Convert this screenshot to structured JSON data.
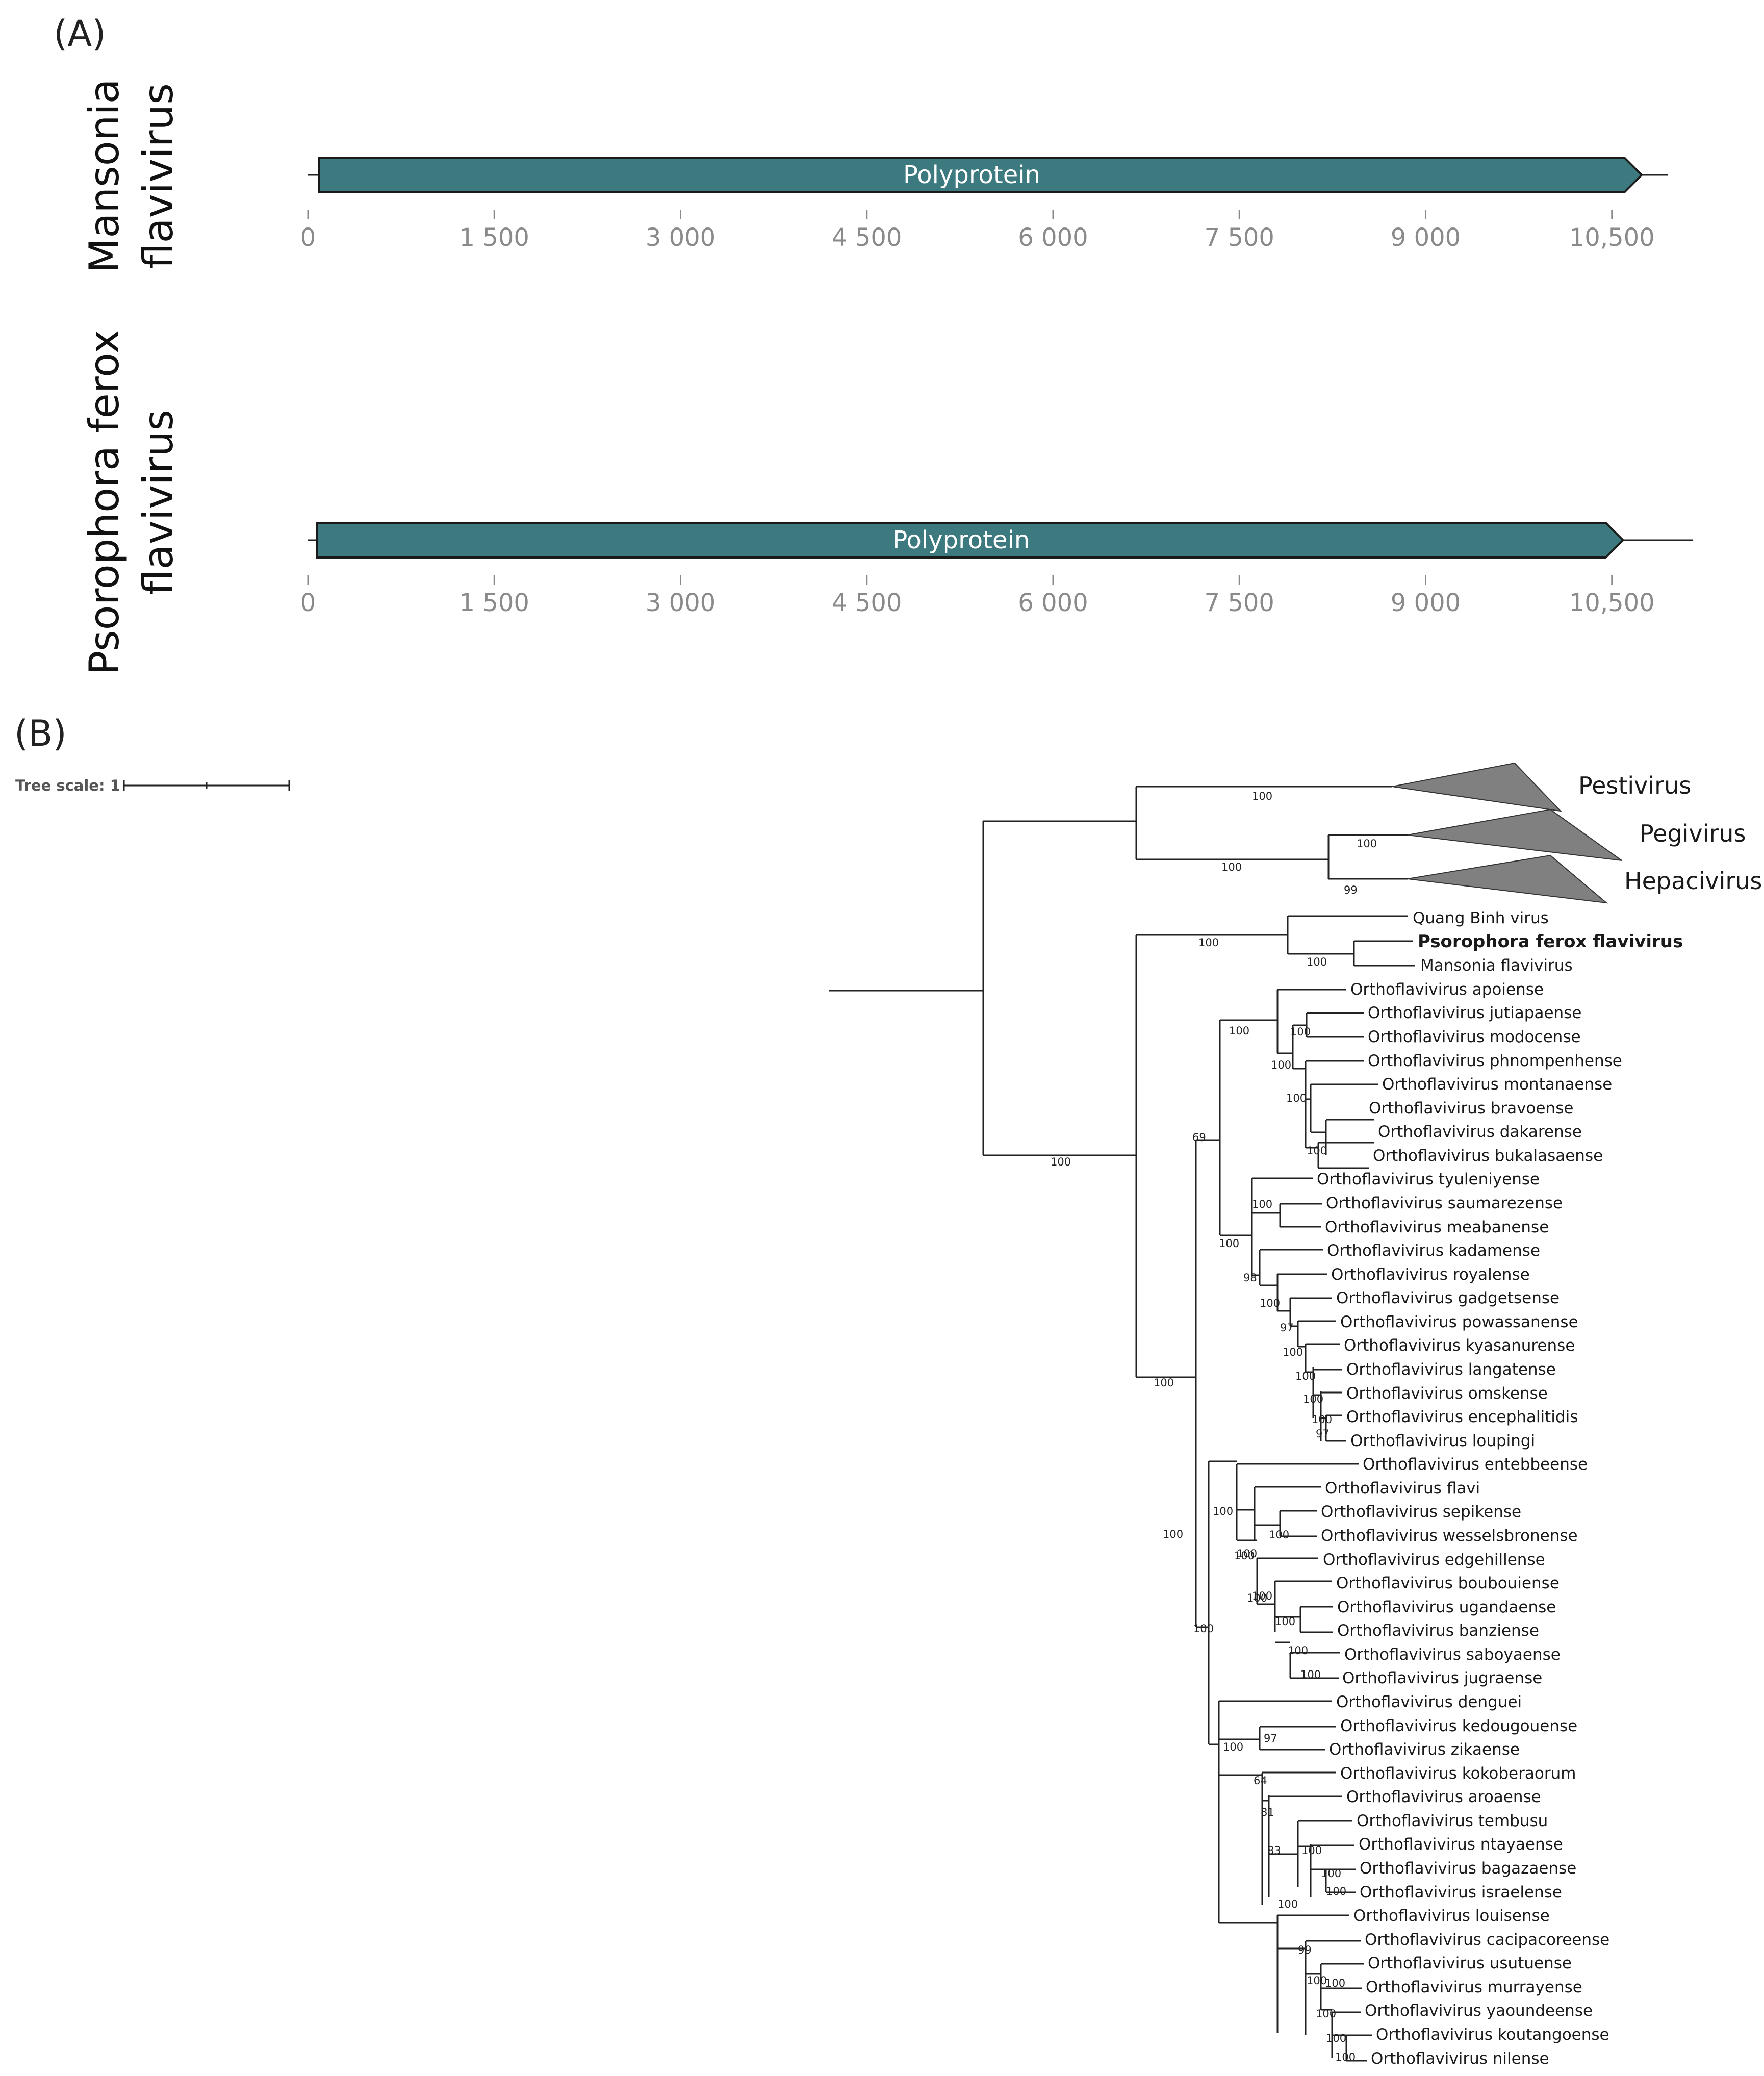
{
  "panel_a": {
    "label": "(A)",
    "genomes": [
      {
        "name_lines": [
          "Mansonia",
          "flavivirus"
        ],
        "gene_label": "Polyprotein",
        "ticks": [
          "0",
          "1 500",
          "3 000",
          "4 500",
          "6 000",
          "7 500",
          "9 000",
          "10,500"
        ],
        "genome_length": 10950,
        "cds_start": 90,
        "cds_end": 10600
      },
      {
        "name_lines": [
          "Psorophora ferox",
          "flavivirus"
        ],
        "gene_label": "Polyprotein",
        "ticks": [
          "0",
          "1 500",
          "3 000",
          "4 500",
          "6 000",
          "7 500",
          "9 000",
          "10,500"
        ],
        "genome_length": 11150,
        "cds_start": 70,
        "cds_end": 10450
      }
    ],
    "colors": {
      "cds_fill": "#3d7a80",
      "cds_stroke": "#1a1a1a",
      "tick": "#8a8a8a"
    }
  },
  "panel_b": {
    "label": "(B)",
    "tree_scale_label": "Tree scale: 1",
    "clades": [
      "Pestivirus",
      "Pegivirus",
      "Hepacivirus"
    ],
    "highlight_tip": "Psorophora ferox flavivirus",
    "tips": [
      "Quang Binh virus",
      "Psorophora ferox flavivirus",
      "Mansonia flavivirus",
      "Orthoflavivirus apoiense",
      "Orthoflavivirus jutiapaense",
      "Orthoflavivirus modocense",
      "Orthoflavivirus phnompenhense",
      "Orthoflavivirus montanaense",
      "Orthoflavivirus bravoense",
      "Orthoflavivirus dakarense",
      "Orthoflavivirus bukalasaense",
      "Orthoflavivirus tyuleniyense",
      "Orthoflavivirus saumarezense",
      "Orthoflavivirus meabanense",
      "Orthoflavivirus kadamense",
      "Orthoflavivirus royalense",
      "Orthoflavivirus gadgetsense",
      "Orthoflavivirus powassanense",
      "Orthoflavivirus kyasanurense",
      "Orthoflavivirus langatense",
      "Orthoflavivirus omskense",
      "Orthoflavivirus encephalitidis",
      "Orthoflavivirus loupingi",
      "Orthoflavivirus entebbeense",
      "Orthoflavivirus flavi",
      "Orthoflavivirus sepikense",
      "Orthoflavivirus wesselsbronense",
      "Orthoflavivirus edgehillense",
      "Orthoflavivirus boubouiense",
      "Orthoflavivirus ugandaense",
      "Orthoflavivirus banziense",
      "Orthoflavivirus saboyaense",
      "Orthoflavivirus jugraense",
      "Orthoflavivirus denguei",
      "Orthoflavivirus kedougouense",
      "Orthoflavivirus zikaense",
      "Orthoflavivirus kokoberaorum",
      "Orthoflavivirus aroaense",
      "Orthoflavivirus tembusu",
      "Orthoflavivirus ntayaense",
      "Orthoflavivirus bagazaense",
      "Orthoflavivirus israelense",
      "Orthoflavivirus louisense",
      "Orthoflavivirus cacipacoreense",
      "Orthoflavivirus usutuense",
      "Orthoflavivirus murrayense",
      "Orthoflavivirus yaoundeense",
      "Orthoflavivirus koutangoense",
      "Orthoflavivirus nilense"
    ],
    "bootstrap_values": [
      "100",
      "100",
      "100",
      "99",
      "100",
      "100",
      "100",
      "100",
      "100",
      "100",
      "100",
      "69",
      "100",
      "100",
      "100",
      "98",
      "100",
      "97",
      "100",
      "100",
      "100",
      "97",
      "100",
      "100",
      "100",
      "100",
      "100",
      "100",
      "100",
      "100",
      "100",
      "100",
      "100",
      "100",
      "100",
      "97",
      "100",
      "64",
      "81",
      "83",
      "100",
      "100",
      "100",
      "100",
      "99",
      "100",
      "100",
      "100",
      "100",
      "100",
      "100",
      "100",
      "100",
      "100",
      "100"
    ],
    "colors": {
      "collapsed_clade": "#808080"
    }
  }
}
